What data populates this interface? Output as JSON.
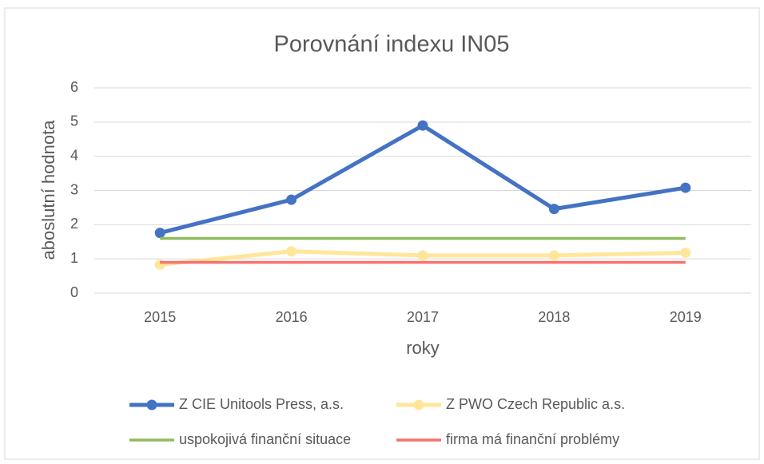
{
  "chart_data": {
    "type": "line",
    "title": "Porovnání indexu IN05",
    "xlabel": "roky",
    "ylabel": "aboslutní hodnota",
    "categories": [
      "2015",
      "2016",
      "2017",
      "2018",
      "2019"
    ],
    "series": [
      {
        "name": "Z CIE Unitools Press, a.s.",
        "color": "#4472c4",
        "marker": true,
        "values": [
          1.76,
          2.73,
          4.9,
          2.46,
          3.08
        ]
      },
      {
        "name": "Z PWO Czech Republic a.s.",
        "color": "#ffe699",
        "marker": true,
        "values": [
          0.83,
          1.22,
          1.1,
          1.1,
          1.18
        ]
      },
      {
        "name": "uspokojivá finanční situace",
        "color": "#8fbc5a",
        "marker": false,
        "values": [
          1.6,
          1.6,
          1.6,
          1.6,
          1.6
        ]
      },
      {
        "name": "firma má finanční problémy",
        "color": "#f4736f",
        "marker": false,
        "values": [
          0.9,
          0.9,
          0.9,
          0.9,
          0.9
        ]
      }
    ],
    "ylim": [
      0,
      6
    ],
    "yticks": [
      0,
      1,
      2,
      3,
      4,
      5,
      6
    ],
    "grid": true,
    "legend": "bottom"
  }
}
